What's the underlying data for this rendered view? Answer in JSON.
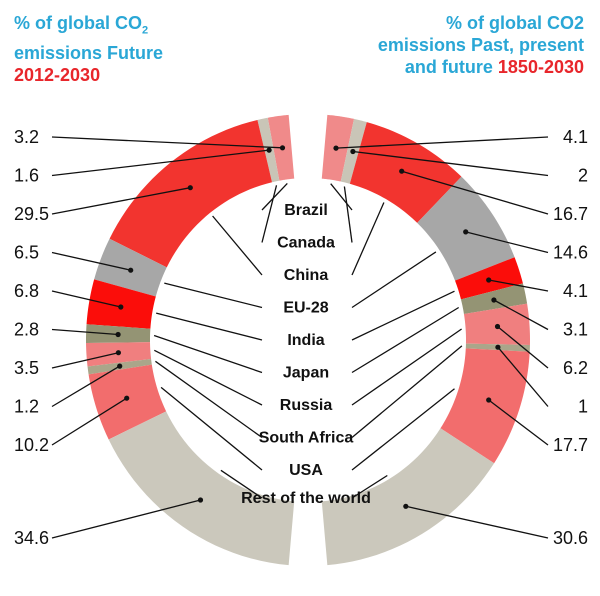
{
  "titles": {
    "left": {
      "line1": "% of global CO",
      "sub": "2",
      "line2": "emissions Future",
      "years": "2012-2030"
    },
    "right": {
      "line1": "% of global CO2",
      "line2": "emissions Past, present",
      "line3a": "and future ",
      "years": "1850-2030"
    }
  },
  "colors": {
    "Brazil": "#f08a8a",
    "Canada": "#c9c5b7",
    "China": "#f2342f",
    "EU-28": "#a7a7a7",
    "India": "#fb0d0a",
    "Japan": "#949474",
    "Russia": "#f07f7f",
    "South Africa": "#aaa68a",
    "USA": "#f26d6d",
    "Rest of the world": "#cbc8bc"
  },
  "chart_data": [
    {
      "type": "pie",
      "title": "% of global CO2 emissions Future 2012-2030",
      "categories": [
        "Brazil",
        "Canada",
        "China",
        "EU-28",
        "India",
        "Japan",
        "Russia",
        "South Africa",
        "USA",
        "Rest of the world"
      ],
      "values": [
        3.2,
        1.6,
        29.5,
        6.5,
        6.8,
        2.8,
        3.5,
        1.2,
        10.2,
        34.6
      ]
    },
    {
      "type": "pie",
      "title": "% of global CO2 emissions Past, present and future 1850-2030",
      "categories": [
        "Brazil",
        "Canada",
        "China",
        "EU-28",
        "India",
        "Japan",
        "Russia",
        "South Africa",
        "USA",
        "Rest of the world"
      ],
      "values": [
        4.1,
        2.0,
        16.7,
        14.6,
        4.1,
        3.1,
        6.2,
        1.0,
        17.7,
        30.6
      ]
    }
  ]
}
